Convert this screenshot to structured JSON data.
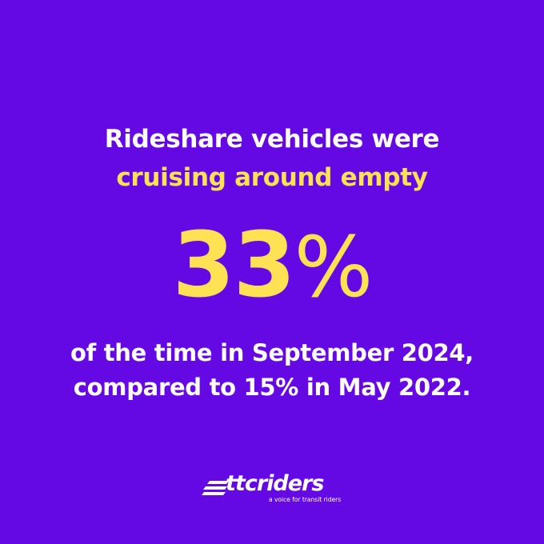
{
  "headline": {
    "line1": "Rideshare vehicles were",
    "line2": "cruising around empty"
  },
  "stat": {
    "number": "33",
    "percent_sign": "%"
  },
  "detail": {
    "line1": "of the time in September 2024,",
    "line2": "compared to 15% in May 2022."
  },
  "logo": {
    "wordmark": "ttcriders",
    "tagline": "a voice for transit riders"
  },
  "colors": {
    "background": "#6409e3",
    "accent": "#ffe253",
    "text": "#ffffff"
  }
}
